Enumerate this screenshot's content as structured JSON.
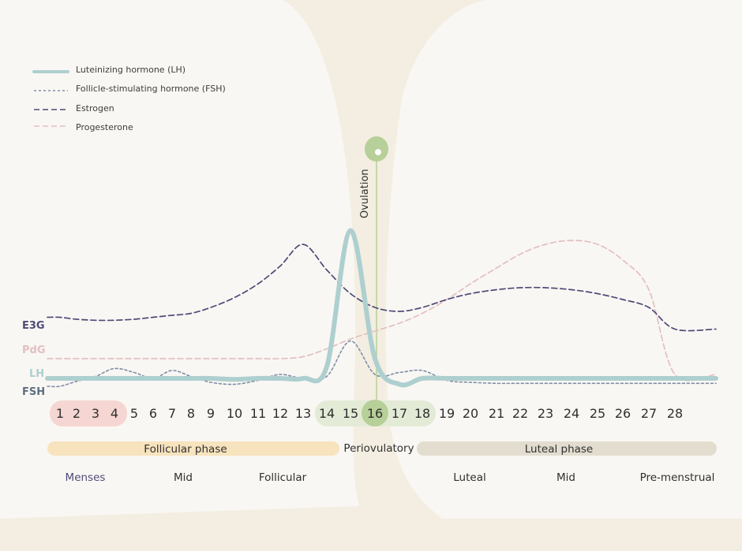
{
  "colors": {
    "background": "#f3eee1",
    "panel": "#f9f7f3",
    "lh": "#aecfcf",
    "fsh": "#7f8fa6",
    "estrogen": "#4f4a78",
    "progesterone": "#e3bfc2",
    "ovulation_marker": "#b7cf98",
    "menses_band": "#f6d6d2",
    "periovulatory_band": "#e3ebd7",
    "follicular_bar": "#f7e3bd",
    "luteal_bar": "#e2ddcf"
  },
  "legend": [
    {
      "label": "Luteinizing hormone (LH)",
      "style": "solid-thick",
      "color": "#aecfcf"
    },
    {
      "label": "Follicle-stimulating hormone (FSH)",
      "style": "dotted",
      "color": "#7f8fa6"
    },
    {
      "label": "Estrogen",
      "style": "dashed",
      "color": "#4f4a78"
    },
    {
      "label": "Progesterone",
      "style": "dashed",
      "color": "#e3bfc2"
    }
  ],
  "axis_labels": [
    {
      "text": "E3G",
      "color": "#4f4a78"
    },
    {
      "text": "PdG",
      "color": "#e3bfc2"
    },
    {
      "text": "LH",
      "color": "#aecfcf"
    },
    {
      "text": "FSH",
      "color": "#5f6f80"
    }
  ],
  "ovulation_label": "Ovulation",
  "phases": {
    "follicular": "Follicular phase",
    "periovulatory": "Periovulatory",
    "luteal": "Luteal phase"
  },
  "subphases": [
    "Menses",
    "Mid",
    "Follicular",
    "Luteal",
    "Mid",
    "Pre-menstrual"
  ],
  "chart_data": {
    "type": "line",
    "x": [
      1,
      2,
      3,
      4,
      5,
      6,
      7,
      8,
      9,
      10,
      11,
      12,
      13,
      14,
      15,
      16,
      17,
      18,
      19,
      20,
      21,
      22,
      23,
      24,
      25,
      26,
      27,
      28
    ],
    "day_labels": [
      "1",
      "2",
      "3",
      "4",
      "5",
      "6",
      "7",
      "8",
      "9",
      "10",
      "11",
      "12",
      "13",
      "14",
      "15",
      "16",
      "17",
      "18",
      "19",
      "20",
      "21",
      "22",
      "23",
      "24",
      "25",
      "26",
      "27",
      "28"
    ],
    "menses_days": [
      1,
      2,
      3,
      4
    ],
    "periovulatory_days": [
      14,
      15,
      16,
      17,
      18
    ],
    "ovulation_day": 16,
    "ylim": [
      0,
      10
    ],
    "series": [
      {
        "name": "Luteinizing hormone (LH)",
        "values": [
          1.0,
          1.0,
          1.0,
          1.0,
          1.0,
          1.0,
          1.0,
          1.0,
          1.0,
          0.95,
          1.0,
          1.0,
          1.0,
          1.6,
          8.5,
          2.0,
          0.7,
          1.0,
          1.0,
          1.0,
          1.0,
          1.0,
          1.0,
          1.0,
          1.0,
          1.0,
          1.0,
          1.0
        ]
      },
      {
        "name": "Follicle-stimulating hormone (FSH)",
        "values": [
          0.6,
          0.85,
          1.1,
          1.5,
          1.3,
          1.0,
          1.4,
          1.1,
          0.8,
          0.7,
          0.9,
          1.2,
          1.0,
          1.1,
          2.9,
          1.2,
          1.3,
          1.4,
          0.9,
          0.8,
          0.75,
          0.75,
          0.75,
          0.75,
          0.75,
          0.75,
          0.75,
          0.75
        ]
      },
      {
        "name": "Estrogen",
        "values": [
          4.1,
          4.0,
          3.95,
          3.95,
          4.0,
          4.1,
          4.2,
          4.3,
          4.6,
          5.1,
          5.8,
          6.7,
          7.8,
          6.5,
          5.3,
          4.6,
          4.4,
          4.6,
          5.0,
          5.3,
          5.5,
          5.6,
          5.6,
          5.5,
          5.3,
          5.0,
          4.6,
          3.5
        ]
      },
      {
        "name": "Progesterone",
        "values": [
          2.0,
          2.0,
          2.0,
          2.0,
          2.0,
          2.0,
          2.0,
          2.0,
          2.0,
          2.0,
          2.0,
          2.0,
          2.1,
          2.5,
          3.0,
          3.4,
          3.8,
          4.3,
          5.0,
          5.8,
          6.6,
          7.3,
          7.8,
          8.0,
          7.8,
          7.0,
          5.5,
          1.2
        ]
      }
    ]
  }
}
